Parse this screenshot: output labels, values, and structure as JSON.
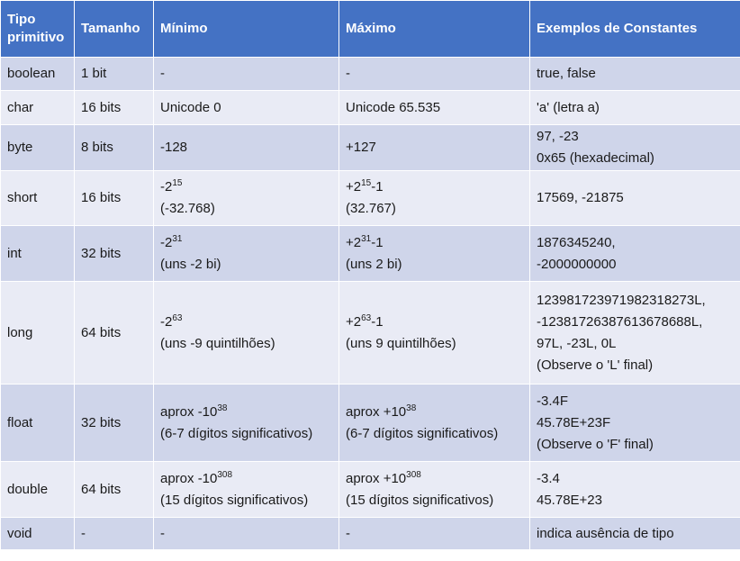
{
  "headers": [
    "Tipo primitivo",
    "Tamanho",
    "Mínimo",
    "Máximo",
    "Exemplos de Constantes"
  ],
  "rows": [
    {
      "type": "boolean",
      "size": "1 bit",
      "min_lines": [
        {
          "base": "-"
        }
      ],
      "max_lines": [
        {
          "base": "-"
        }
      ],
      "examples": [
        "true, false"
      ]
    },
    {
      "type": "char",
      "size": "16 bits",
      "min_lines": [
        {
          "base": "Unicode 0"
        }
      ],
      "max_lines": [
        {
          "base": "Unicode 65.535"
        }
      ],
      "examples": [
        "'a' (letra a)"
      ]
    },
    {
      "type": "byte",
      "size": "8 bits",
      "min_lines": [
        {
          "base": "-128"
        }
      ],
      "max_lines": [
        {
          "base": "+127"
        }
      ],
      "examples": [
        "97, -23",
        "0x65 (hexadecimal)"
      ]
    },
    {
      "type": "short",
      "size": "16 bits",
      "min_lines": [
        {
          "base": "-2",
          "sup": "15"
        },
        {
          "base": "(-32.768)"
        }
      ],
      "max_lines": [
        {
          "base": "+2",
          "sup": "15",
          "after": "-1"
        },
        {
          "base": "(32.767)"
        }
      ],
      "examples": [
        "17569, -21875"
      ]
    },
    {
      "type": "int",
      "size": "32 bits",
      "min_lines": [
        {
          "base": "-2",
          "sup": "31"
        },
        {
          "base": "(uns -2 bi)"
        }
      ],
      "max_lines": [
        {
          "base": "+2",
          "sup": "31",
          "after": "-1"
        },
        {
          "base": "(uns 2 bi)"
        }
      ],
      "examples": [
        "1876345240,",
        "-2000000000"
      ]
    },
    {
      "type": "long",
      "size": "64 bits",
      "min_lines": [
        {
          "base": "-2",
          "sup": "63"
        },
        {
          "base": "(uns -9 quintilhões)"
        }
      ],
      "max_lines": [
        {
          "base": "+2",
          "sup": "63",
          "after": "-1"
        },
        {
          "base": "(uns 9 quintilhões)"
        }
      ],
      "examples": [
        "123981723971982318273L,",
        "-12381726387613678688L,",
        "97L, -23L, 0L",
        "(Observe o 'L' final)"
      ]
    },
    {
      "type": "float",
      "size": "32 bits",
      "min_lines": [
        {
          "base": "aprox -10",
          "sup": "38"
        },
        {
          "base": "(6-7 dígitos significativos)"
        }
      ],
      "max_lines": [
        {
          "base": "aprox +10",
          "sup": "38"
        },
        {
          "base": "(6-7 dígitos significativos)"
        }
      ],
      "examples": [
        "-3.4F",
        "45.78E+23F",
        "(Observe o 'F' final)"
      ]
    },
    {
      "type": "double",
      "size": "64 bits",
      "min_lines": [
        {
          "base": "aprox -10",
          "sup": "308"
        },
        {
          "base": "(15 dígitos significativos)"
        }
      ],
      "max_lines": [
        {
          "base": "aprox +10",
          "sup": "308"
        },
        {
          "base": "(15 dígitos significativos)"
        }
      ],
      "examples": [
        "-3.4",
        "45.78E+23"
      ]
    },
    {
      "type": "void",
      "size": "-",
      "min_lines": [
        {
          "base": "-"
        }
      ],
      "max_lines": [
        {
          "base": "-"
        }
      ],
      "examples": [
        "indica ausência de tipo"
      ]
    }
  ]
}
